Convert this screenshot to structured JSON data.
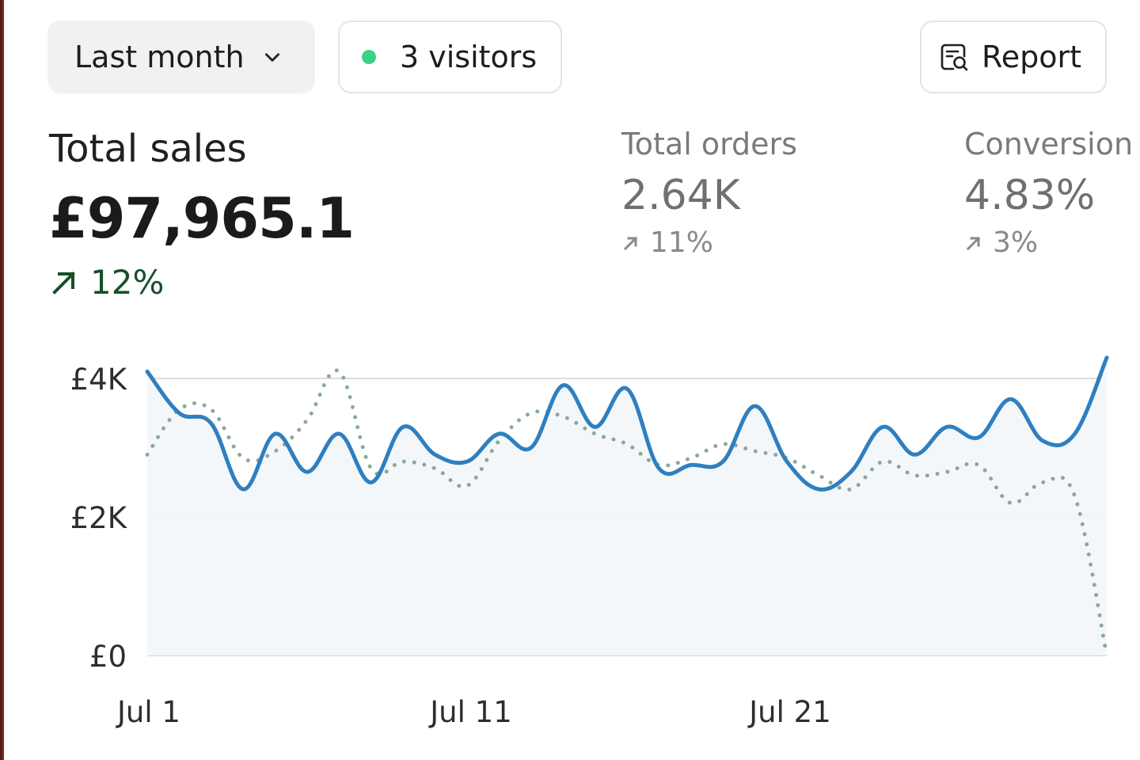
{
  "toolbar": {
    "period_label": "Last month",
    "visitors_label": "3 visitors",
    "report_label": "Report"
  },
  "metrics": {
    "sales": {
      "label": "Total sales",
      "value": "£97,965.1",
      "change": "12%"
    },
    "orders": {
      "label": "Total orders",
      "value": "2.64K",
      "change": "11%"
    },
    "conversion": {
      "label": "Conversion",
      "value": "4.83%",
      "change": "3%"
    }
  },
  "colors": {
    "primary_line": "#2f7fc0",
    "comparison_line": "#88a8a0",
    "trend_positive": "#174f29",
    "live_dot": "#39d383"
  },
  "icons": {
    "period_chevron": "chevron-down-icon",
    "visitor_status": "live-dot-icon",
    "report": "report-search-icon",
    "trend": "arrow-up-right-icon"
  },
  "chart_data": {
    "type": "line",
    "x": [
      1,
      2,
      3,
      4,
      5,
      6,
      7,
      8,
      9,
      10,
      11,
      12,
      13,
      14,
      15,
      16,
      17,
      18,
      19,
      20,
      21,
      22,
      23,
      24,
      25,
      26,
      27,
      28,
      29,
      30,
      31
    ],
    "x_ticks": [
      "Jul 1",
      "Jul 11",
      "Jul 21"
    ],
    "y_ticks": [
      "£4K",
      "£2K",
      "£0"
    ],
    "ylim": [
      0,
      4000
    ],
    "grid": true,
    "series": [
      {
        "style": "solid",
        "color": "#2f7fc0",
        "values": [
          4100,
          3500,
          3350,
          2400,
          3200,
          2650,
          3200,
          2500,
          3300,
          2900,
          2800,
          3200,
          3000,
          3900,
          3300,
          3850,
          2700,
          2750,
          2800,
          3600,
          2800,
          2400,
          2650,
          3300,
          2900,
          3300,
          3150,
          3700,
          3100,
          3200,
          4300
        ]
      },
      {
        "style": "dotted",
        "color": "#88a8a0",
        "values": [
          2900,
          3550,
          3550,
          2850,
          2950,
          3400,
          4100,
          2700,
          2800,
          2700,
          2450,
          3100,
          3500,
          3450,
          3200,
          3050,
          2750,
          2850,
          3050,
          2950,
          2850,
          2600,
          2400,
          2800,
          2600,
          2650,
          2750,
          2200,
          2500,
          2300,
          0
        ]
      }
    ]
  }
}
